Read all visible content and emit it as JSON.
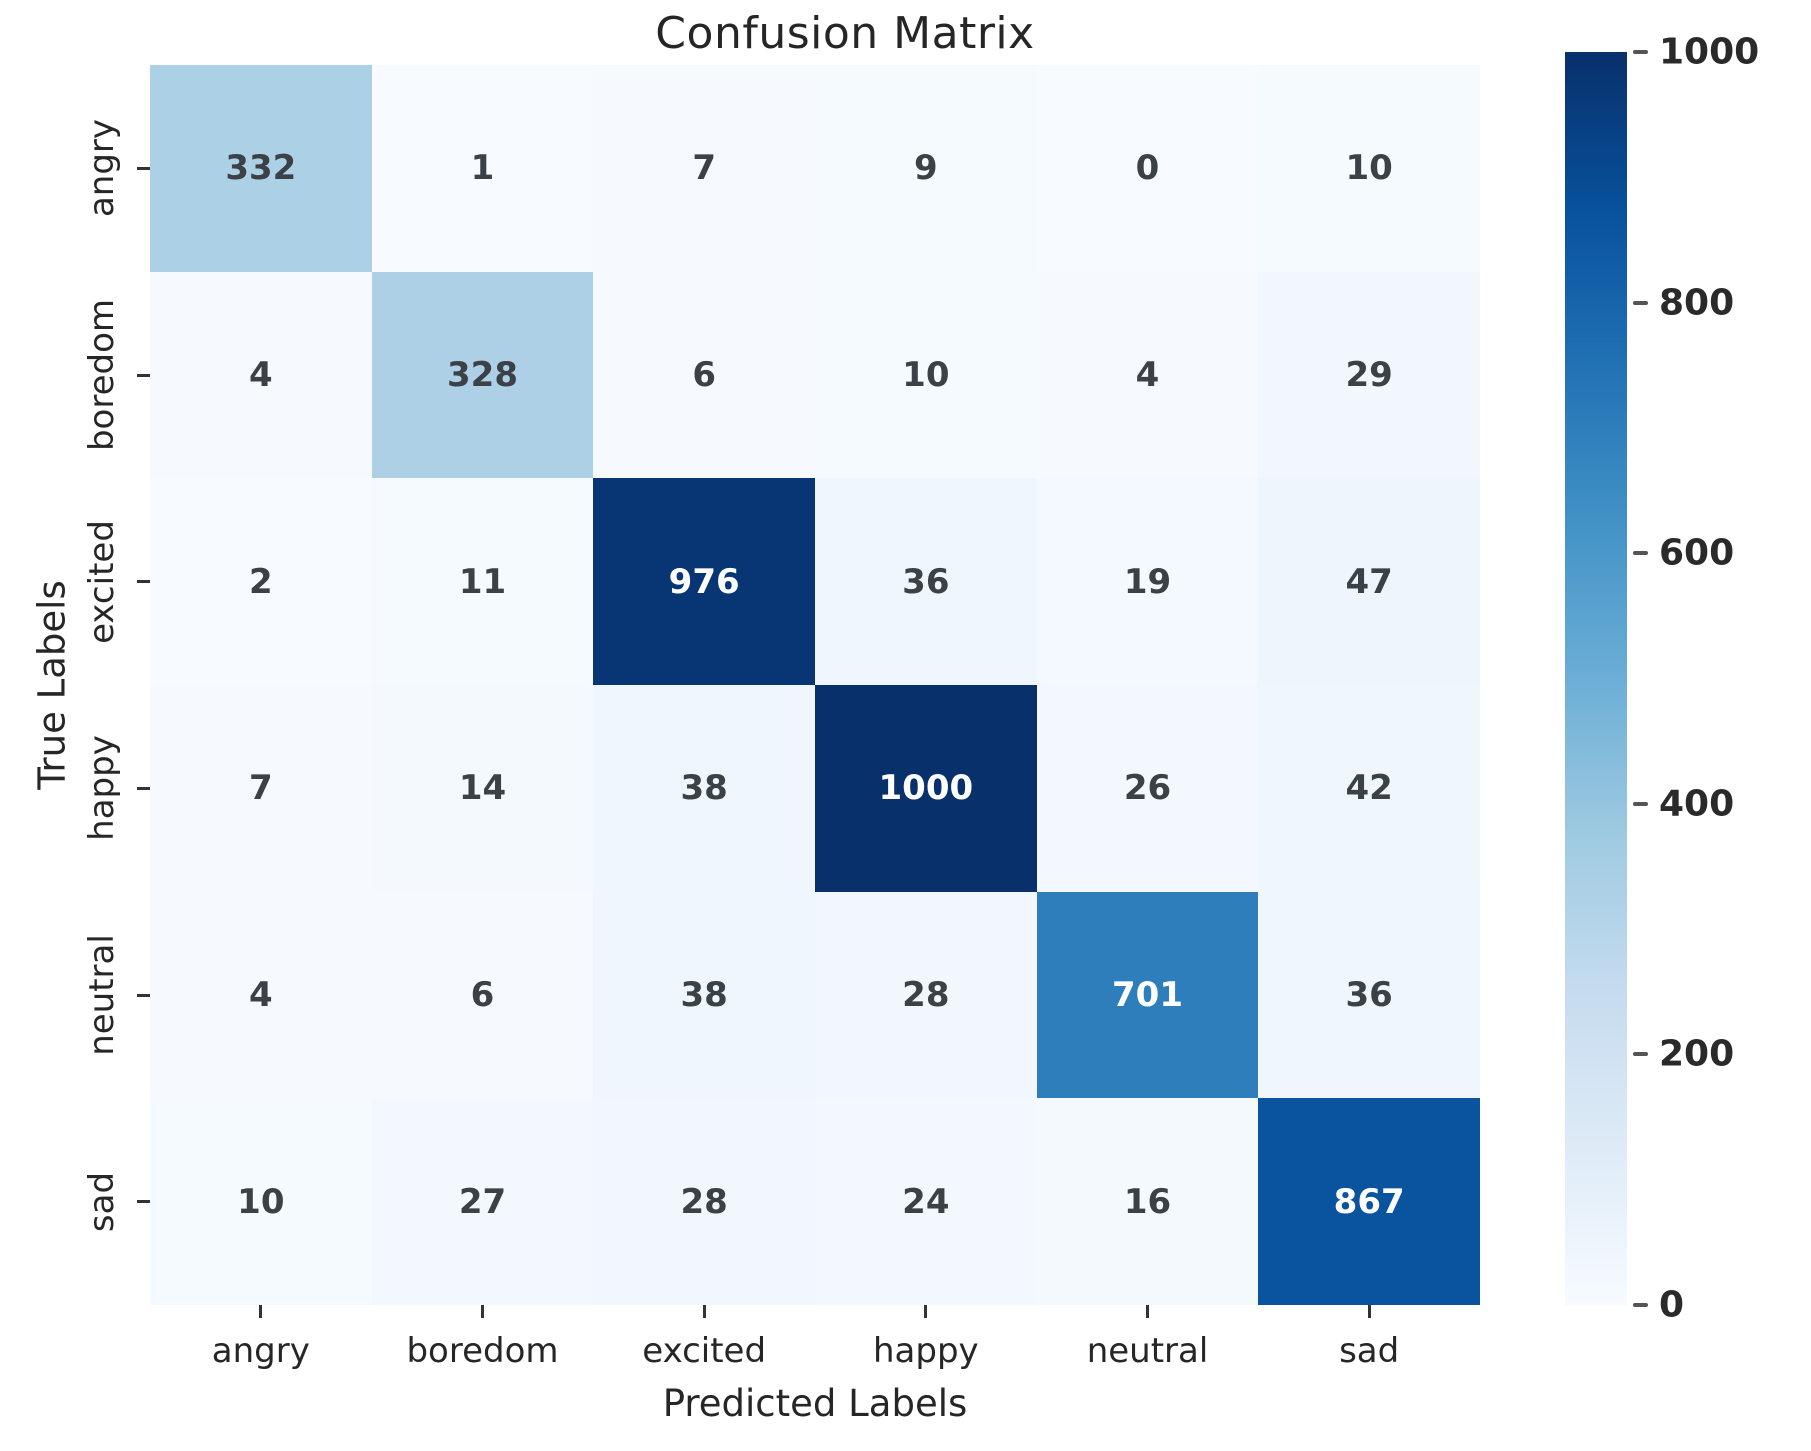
{
  "chart_data": {
    "type": "heatmap",
    "title": "Confusion Matrix",
    "xlabel": "Predicted Labels",
    "ylabel": "True Labels",
    "x_categories": [
      "angry",
      "boredom",
      "excited",
      "happy",
      "neutral",
      "sad"
    ],
    "y_categories": [
      "angry",
      "boredom",
      "excited",
      "happy",
      "neutral",
      "sad"
    ],
    "matrix": [
      [
        332,
        1,
        7,
        9,
        0,
        10
      ],
      [
        4,
        328,
        6,
        10,
        4,
        29
      ],
      [
        2,
        11,
        976,
        36,
        19,
        47
      ],
      [
        7,
        14,
        38,
        1000,
        26,
        42
      ],
      [
        4,
        6,
        38,
        28,
        701,
        36
      ],
      [
        10,
        27,
        28,
        24,
        16,
        867
      ]
    ],
    "vmin": 0,
    "vmax": 1000,
    "colorbar_ticks": [
      0,
      200,
      400,
      600,
      800,
      1000
    ],
    "legend_position": "right-colorbar",
    "grid": false,
    "colormap": "Blues",
    "colormap_anchors": [
      "#f7fbff",
      "#deebf7",
      "#c6dbef",
      "#9ecae1",
      "#6baed6",
      "#4292c6",
      "#2171b5",
      "#08519c",
      "#08306b"
    ],
    "annotation_dark_text_color": "#3b4147",
    "annotation_light_text_color": "#ffffff"
  }
}
